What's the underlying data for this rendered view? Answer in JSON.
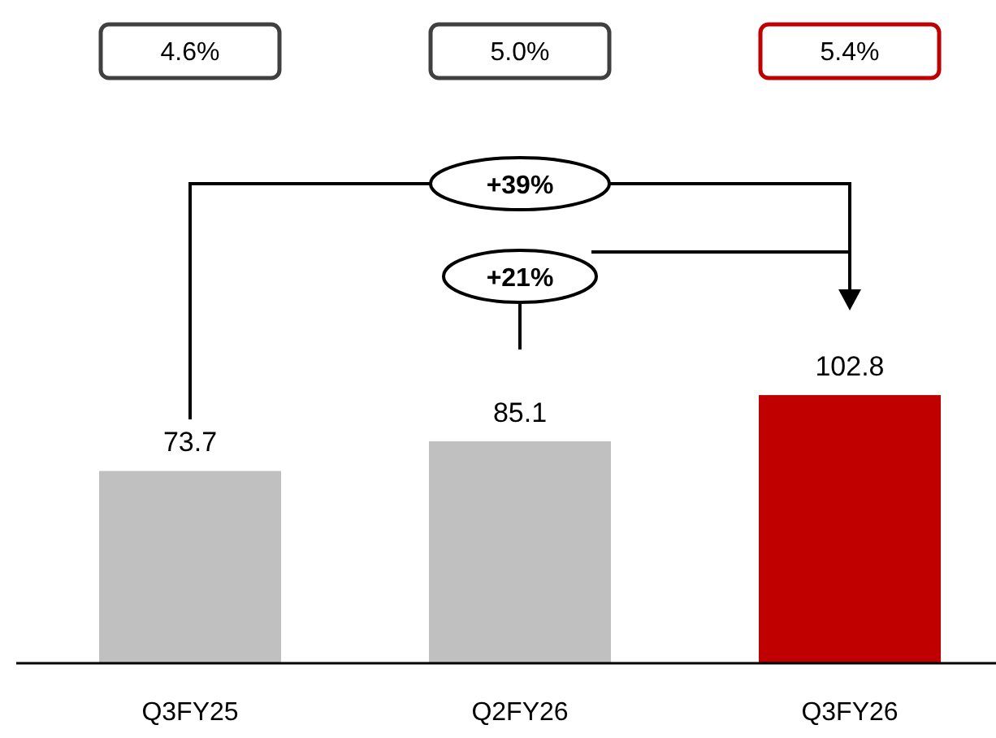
{
  "chart_data": {
    "type": "bar",
    "categories": [
      "Q3FY25",
      "Q2FY26",
      "Q3FY26"
    ],
    "values": [
      73.7,
      85.1,
      102.8
    ],
    "colors": [
      "#c0c0c0",
      "#c0c0c0",
      "#c00000"
    ],
    "data_labels": true,
    "annotations": [
      "4.6%",
      "5.0%",
      "5.4%",
      "+39%",
      "+21%"
    ]
  }
}
